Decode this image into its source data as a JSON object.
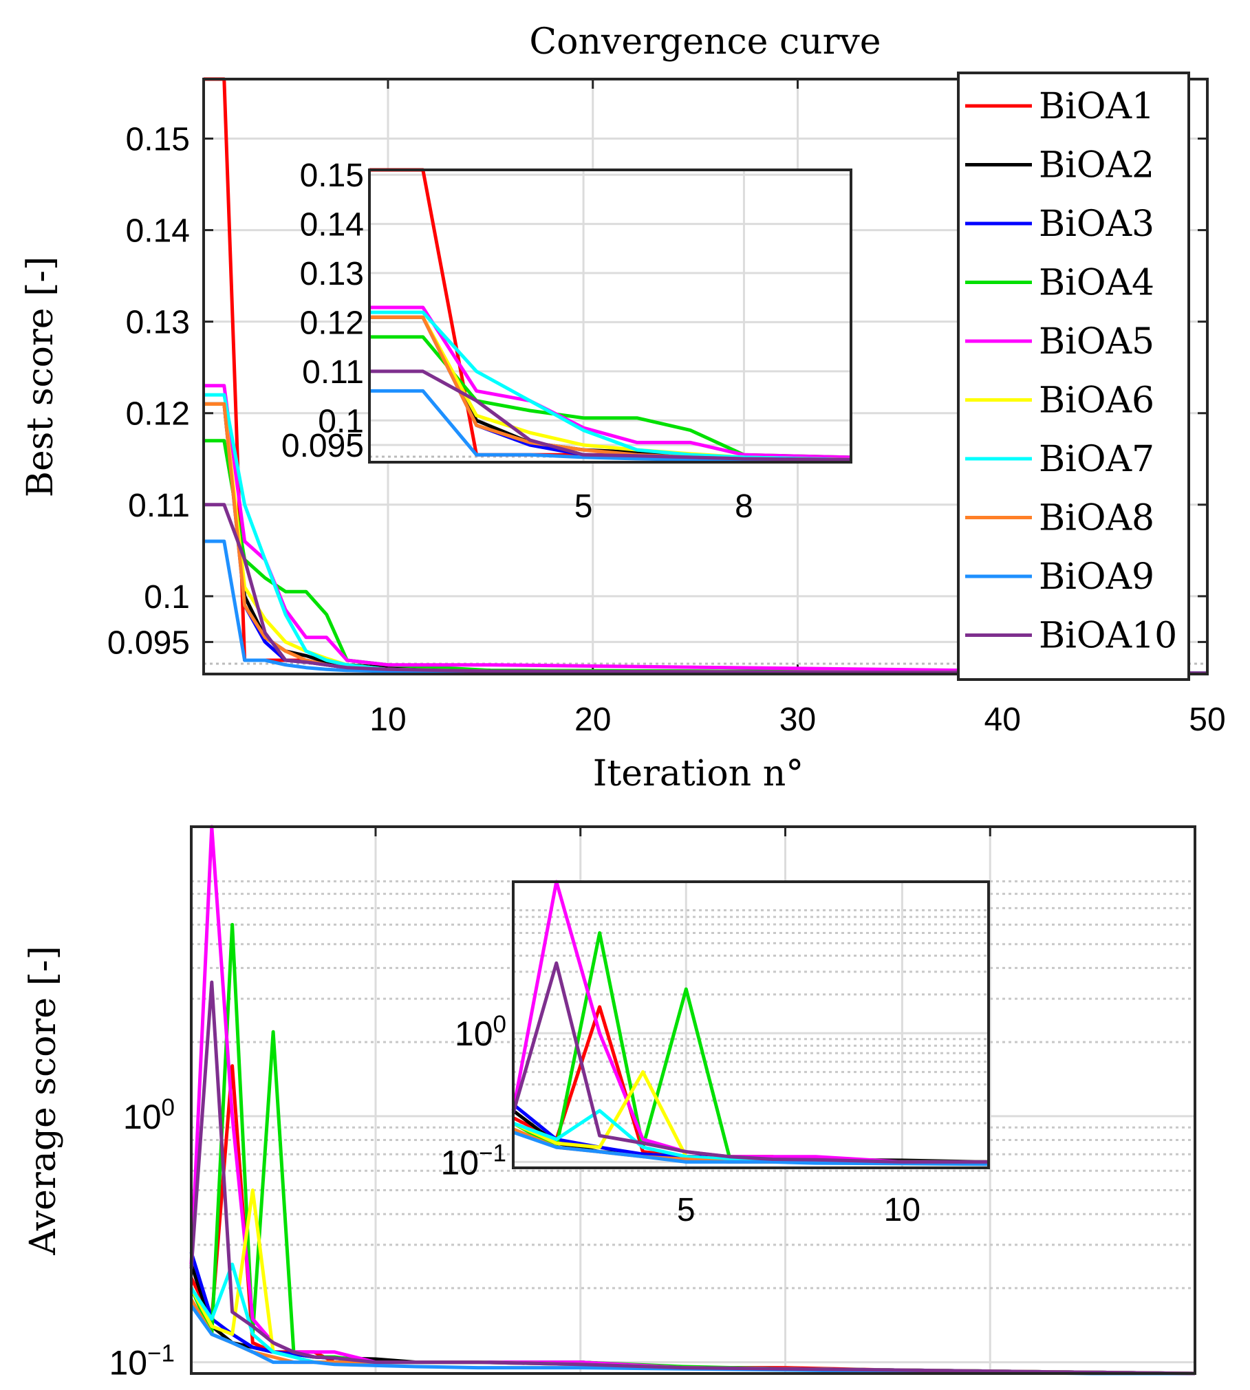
{
  "chart_data": [
    {
      "type": "line",
      "title": "Convergence curve",
      "xlabel": "Iteration n°",
      "ylabel": "Best score [-]",
      "xlim": [
        1,
        50
      ],
      "ylim": [
        0.0915,
        0.1565
      ],
      "xticks": [
        "10",
        "20",
        "30",
        "40",
        "50"
      ],
      "yticks": [
        "0.15",
        "0.14",
        "0.13",
        "0.12",
        "0.11",
        "0.1",
        "0.095"
      ],
      "legend": [
        "BiOA1",
        "BiOA2",
        "BiOA3",
        "BiOA4",
        "BiOA5",
        "BiOA6",
        "BiOA7",
        "BiOA8",
        "BiOA9",
        "BiOA10"
      ],
      "legend_position": "right",
      "series": [
        {
          "name": "BiOA1",
          "color": "#ff0000",
          "x": [
            1,
            2,
            3,
            4,
            5,
            6,
            7,
            8,
            10,
            15,
            50
          ],
          "values": [
            0.1565,
            0.1565,
            0.093,
            0.093,
            0.093,
            0.093,
            0.0925,
            0.0922,
            0.092,
            0.0918,
            0.0916
          ]
        },
        {
          "name": "BiOA2",
          "color": "#000000",
          "x": [
            1,
            2,
            3,
            4,
            5,
            6,
            7,
            8,
            10,
            15,
            50
          ],
          "values": [
            0.121,
            0.121,
            0.1,
            0.0955,
            0.094,
            0.0935,
            0.0928,
            0.0925,
            0.0922,
            0.0919,
            0.0916
          ]
        },
        {
          "name": "BiOA3",
          "color": "#0000ff",
          "x": [
            1,
            2,
            3,
            4,
            5,
            6,
            7,
            8,
            10,
            15,
            50
          ],
          "values": [
            0.121,
            0.121,
            0.099,
            0.095,
            0.093,
            0.0928,
            0.0925,
            0.0922,
            0.092,
            0.0918,
            0.0916
          ]
        },
        {
          "name": "BiOA4",
          "color": "#00e000",
          "x": [
            1,
            2,
            3,
            4,
            5,
            6,
            7,
            8,
            10,
            15,
            50
          ],
          "values": [
            0.117,
            0.117,
            0.104,
            0.102,
            0.1005,
            0.1005,
            0.098,
            0.093,
            0.0925,
            0.0919,
            0.0916
          ]
        },
        {
          "name": "BiOA5",
          "color": "#ff00ff",
          "x": [
            1,
            2,
            3,
            4,
            5,
            6,
            7,
            8,
            10,
            15,
            50
          ],
          "values": [
            0.123,
            0.123,
            0.106,
            0.104,
            0.0985,
            0.0955,
            0.0955,
            0.093,
            0.0925,
            0.0925,
            0.0916
          ]
        },
        {
          "name": "BiOA6",
          "color": "#ffff00",
          "x": [
            1,
            2,
            3,
            4,
            5,
            6,
            7,
            8,
            10,
            15,
            50
          ],
          "values": [
            0.121,
            0.121,
            0.101,
            0.0975,
            0.095,
            0.094,
            0.0932,
            0.0925,
            0.092,
            0.0918,
            0.0916
          ]
        },
        {
          "name": "BiOA7",
          "color": "#00ffff",
          "x": [
            1,
            2,
            3,
            4,
            5,
            6,
            7,
            8,
            10,
            15,
            50
          ],
          "values": [
            0.122,
            0.122,
            0.11,
            0.104,
            0.098,
            0.094,
            0.093,
            0.0925,
            0.092,
            0.0918,
            0.0916
          ]
        },
        {
          "name": "BiOA8",
          "color": "#ff7f27",
          "x": [
            1,
            2,
            3,
            4,
            5,
            6,
            7,
            8,
            10,
            15,
            50
          ],
          "values": [
            0.121,
            0.121,
            0.099,
            0.0955,
            0.094,
            0.093,
            0.0925,
            0.0922,
            0.092,
            0.0918,
            0.0916
          ]
        },
        {
          "name": "BiOA9",
          "color": "#1e90ff",
          "x": [
            1,
            2,
            3,
            4,
            5,
            6,
            7,
            8,
            10,
            15,
            50
          ],
          "values": [
            0.106,
            0.106,
            0.093,
            0.093,
            0.0925,
            0.0922,
            0.092,
            0.0919,
            0.0918,
            0.0917,
            0.0916
          ]
        },
        {
          "name": "BiOA10",
          "color": "#7e2f8e",
          "x": [
            1,
            2,
            3,
            4,
            5,
            6,
            7,
            8,
            10,
            15,
            50
          ],
          "values": [
            0.11,
            0.11,
            0.104,
            0.096,
            0.093,
            0.0928,
            0.0925,
            0.0922,
            0.092,
            0.0918,
            0.0916
          ]
        }
      ],
      "inset": {
        "xlim": [
          1,
          10
        ],
        "ylim": [
          0.0915,
          0.151
        ],
        "xticks": [
          "5",
          "8"
        ],
        "yticks": [
          "0.15",
          "0.14",
          "0.13",
          "0.12",
          "0.11",
          "0.1",
          "0.095"
        ]
      }
    },
    {
      "type": "line",
      "title": "",
      "xlabel": "",
      "ylabel": "Average score [-]",
      "yscale": "log",
      "xlim": [
        1,
        50
      ],
      "ylim": [
        0.09,
        15.0
      ],
      "yticks": [
        "10^0",
        "10^-1"
      ],
      "series": [
        {
          "name": "BiOA1",
          "color": "#ff0000",
          "x": [
            1,
            2,
            3,
            4,
            5,
            6,
            7,
            8,
            10,
            12,
            15,
            20,
            25,
            30,
            35,
            40,
            45,
            50
          ],
          "values": [
            0.22,
            0.15,
            1.6,
            0.12,
            0.11,
            0.11,
            0.11,
            0.1,
            0.1,
            0.1,
            0.1,
            0.1,
            0.095,
            0.095,
            0.093,
            0.092,
            0.091,
            0.09
          ]
        },
        {
          "name": "BiOA2",
          "color": "#000000",
          "x": [
            1,
            2,
            3,
            4,
            5,
            6,
            7,
            8,
            10,
            12,
            15,
            20,
            25,
            30,
            35,
            40,
            45,
            50
          ],
          "values": [
            0.25,
            0.14,
            0.12,
            0.115,
            0.11,
            0.108,
            0.105,
            0.104,
            0.103,
            0.1,
            0.1,
            0.1,
            0.095,
            0.094,
            0.093,
            0.092,
            0.091,
            0.09
          ]
        },
        {
          "name": "BiOA3",
          "color": "#0000ff",
          "x": [
            1,
            2,
            3,
            4,
            5,
            6,
            7,
            8,
            10,
            12,
            15,
            20,
            25,
            30,
            35,
            40,
            45,
            50
          ],
          "values": [
            0.28,
            0.15,
            0.13,
            0.115,
            0.11,
            0.108,
            0.105,
            0.104,
            0.1,
            0.1,
            0.1,
            0.1,
            0.095,
            0.094,
            0.093,
            0.092,
            0.091,
            0.09
          ]
        },
        {
          "name": "BiOA4",
          "color": "#00e000",
          "x": [
            1,
            2,
            3,
            4,
            5,
            6,
            7,
            8,
            10,
            12,
            15,
            20,
            25,
            30,
            35,
            40,
            45,
            50
          ],
          "values": [
            0.2,
            0.13,
            6.0,
            0.13,
            2.2,
            0.11,
            0.105,
            0.105,
            0.1,
            0.1,
            0.1,
            0.1,
            0.096,
            0.094,
            0.093,
            0.092,
            0.091,
            0.09
          ]
        },
        {
          "name": "BiOA5",
          "color": "#ff00ff",
          "x": [
            1,
            2,
            3,
            4,
            5,
            6,
            7,
            8,
            10,
            12,
            15,
            20,
            25,
            30,
            35,
            40,
            45,
            50
          ],
          "values": [
            0.25,
            15.0,
            1.0,
            0.15,
            0.12,
            0.11,
            0.11,
            0.11,
            0.1,
            0.1,
            0.1,
            0.1,
            0.095,
            0.094,
            0.093,
            0.092,
            0.091,
            0.09
          ]
        },
        {
          "name": "BiOA6",
          "color": "#ffff00",
          "x": [
            1,
            2,
            3,
            4,
            5,
            6,
            7,
            8,
            10,
            12,
            15,
            20,
            25,
            30,
            35,
            40,
            45,
            50
          ],
          "values": [
            0.2,
            0.14,
            0.13,
            0.5,
            0.11,
            0.105,
            0.1,
            0.1,
            0.1,
            0.1,
            0.1,
            0.098,
            0.095,
            0.094,
            0.093,
            0.092,
            0.091,
            0.09
          ]
        },
        {
          "name": "BiOA7",
          "color": "#00ffff",
          "x": [
            1,
            2,
            3,
            4,
            5,
            6,
            7,
            8,
            10,
            12,
            15,
            20,
            25,
            30,
            35,
            40,
            45,
            50
          ],
          "values": [
            0.2,
            0.15,
            0.25,
            0.13,
            0.11,
            0.105,
            0.1,
            0.1,
            0.1,
            0.1,
            0.1,
            0.098,
            0.095,
            0.094,
            0.093,
            0.092,
            0.091,
            0.09
          ]
        },
        {
          "name": "BiOA8",
          "color": "#ff7f27",
          "x": [
            1,
            2,
            3,
            4,
            5,
            6,
            7,
            8,
            10,
            12,
            15,
            20,
            25,
            30,
            35,
            40,
            45,
            50
          ],
          "values": [
            0.18,
            0.13,
            0.12,
            0.11,
            0.105,
            0.1,
            0.1,
            0.1,
            0.1,
            0.1,
            0.1,
            0.098,
            0.095,
            0.094,
            0.093,
            0.092,
            0.091,
            0.09
          ]
        },
        {
          "name": "BiOA9",
          "color": "#1e90ff",
          "x": [
            1,
            2,
            3,
            4,
            5,
            6,
            7,
            8,
            10,
            12,
            15,
            20,
            25,
            30,
            35,
            40,
            45,
            50
          ],
          "values": [
            0.17,
            0.13,
            0.12,
            0.11,
            0.1,
            0.1,
            0.1,
            0.098,
            0.097,
            0.096,
            0.095,
            0.095,
            0.094,
            0.093,
            0.092,
            0.091,
            0.09,
            0.09
          ]
        },
        {
          "name": "BiOA10",
          "color": "#7e2f8e",
          "x": [
            1,
            2,
            3,
            4,
            5,
            6,
            7,
            8,
            10,
            12,
            15,
            20,
            25,
            30,
            35,
            40,
            45,
            50
          ],
          "values": [
            0.24,
            3.5,
            0.16,
            0.14,
            0.12,
            0.11,
            0.105,
            0.104,
            0.1,
            0.1,
            0.1,
            0.098,
            0.095,
            0.094,
            0.093,
            0.092,
            0.091,
            0.09
          ]
        }
      ],
      "inset": {
        "xlim": [
          1,
          12
        ],
        "ylim": [
          0.09,
          15.0
        ],
        "xticks": [
          "5",
          "10"
        ],
        "yticks": [
          "10^0",
          "10^-1"
        ]
      }
    }
  ]
}
